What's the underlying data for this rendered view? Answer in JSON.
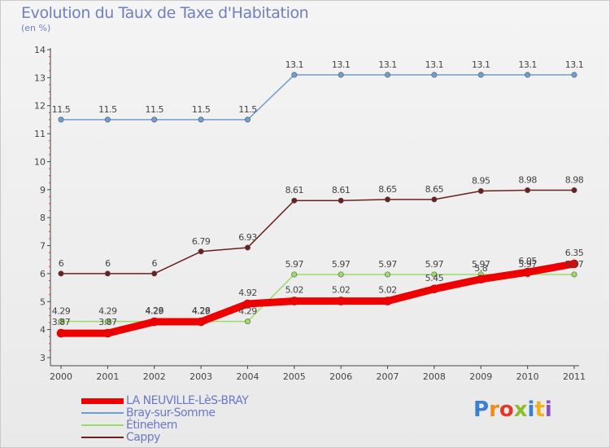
{
  "header": {
    "title": "Evolution du Taux de Taxe d'Habitation",
    "subtitle": "(en %)"
  },
  "chart_data": {
    "type": "line",
    "title": "Evolution du Taux de Taxe d'Habitation",
    "ylabel": "(en %)",
    "xlabel": "",
    "x": [
      "2000",
      "2001",
      "2002",
      "2003",
      "2004",
      "2005",
      "2006",
      "2007",
      "2008",
      "2009",
      "2010",
      "2011"
    ],
    "ylim": [
      3,
      14
    ],
    "yticks": [
      "3",
      "4",
      "5",
      "6",
      "7",
      "8",
      "9",
      "10",
      "11",
      "12",
      "13",
      "14"
    ],
    "grid": false,
    "legend_position": "bottom-left",
    "series": [
      {
        "name": "LA NEUVILLE-LèS-BRAY",
        "color": "#ee0000",
        "values": [
          3.87,
          3.87,
          4.28,
          4.28,
          4.92,
          5.02,
          5.02,
          5.02,
          5.45,
          5.8,
          6.05,
          6.35
        ],
        "labels": [
          "3.87",
          "3.87",
          "4.28",
          "4.28",
          "4.92",
          "5.02",
          "5.02",
          "5.02",
          "5.45",
          "5.8",
          "6.05",
          "6.35"
        ]
      },
      {
        "name": "Bray-sur-Somme",
        "color": "#6d9fd0",
        "values": [
          11.5,
          11.5,
          11.5,
          11.5,
          11.5,
          13.1,
          13.1,
          13.1,
          13.1,
          13.1,
          13.1,
          13.1
        ],
        "labels": [
          "11.5",
          "11.5",
          "11.5",
          "11.5",
          "11.5",
          "13.1",
          "13.1",
          "13.1",
          "13.1",
          "13.1",
          "13.1",
          "13.1"
        ]
      },
      {
        "name": "Étinehem",
        "color": "#99dd66",
        "values": [
          4.29,
          4.29,
          4.29,
          4.29,
          4.29,
          5.97,
          5.97,
          5.97,
          5.97,
          5.97,
          5.97,
          5.97
        ],
        "labels": [
          "4.29",
          "4.29",
          "4.29",
          "4.29",
          "4.29",
          "5.97",
          "5.97",
          "5.97",
          "5.97",
          "5.97",
          "5.97",
          "5.97"
        ]
      },
      {
        "name": "Cappy",
        "color": "#6b1f1f",
        "values": [
          6,
          6,
          6,
          6.79,
          6.93,
          8.61,
          8.61,
          8.65,
          8.65,
          8.95,
          8.98,
          8.98
        ],
        "labels": [
          "6",
          "6",
          "6",
          "6.79",
          "6.93",
          "8.61",
          "8.61",
          "8.65",
          "8.65",
          "8.95",
          "8.98",
          "8.98"
        ]
      }
    ]
  },
  "logo": {
    "letters": [
      "P",
      "r",
      "o",
      "x",
      "i",
      "t",
      "i"
    ],
    "colors": [
      "#3a7fd0",
      "#f08a1a",
      "#e23a2a",
      "#8abf2a",
      "#3a7fd0",
      "#f0b21a",
      "#8a4fc0"
    ]
  }
}
